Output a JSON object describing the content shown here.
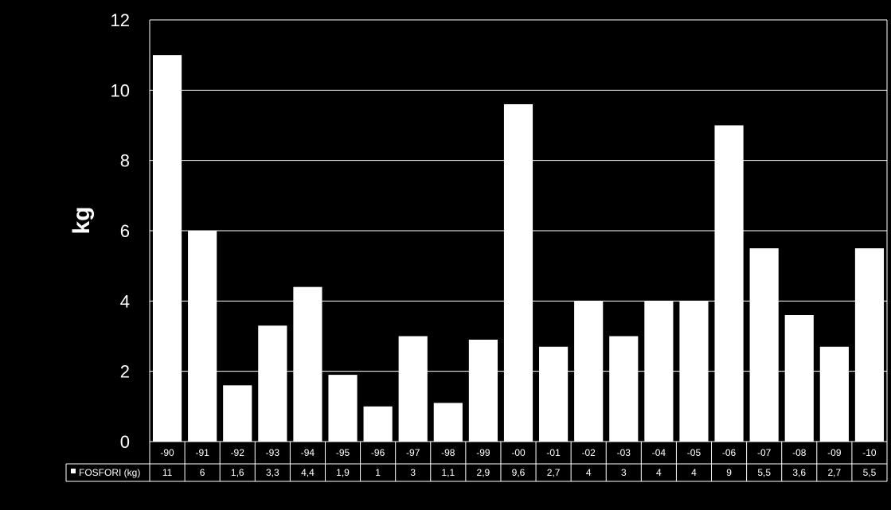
{
  "chart_data": {
    "type": "bar",
    "ylabel": "kg",
    "ylim": [
      0,
      12
    ],
    "yticks": [
      "0",
      "2",
      "4",
      "6",
      "8",
      "10",
      "12"
    ],
    "grid": true,
    "categories": [
      "-90",
      "-91",
      "-92",
      "-93",
      "-94",
      "-95",
      "-96",
      "-97",
      "-98",
      "-99",
      "-00",
      "-01",
      "-02",
      "-03",
      "-04",
      "-05",
      "-06",
      "-07",
      "-08",
      "-09",
      "-10"
    ],
    "series": [
      {
        "name": "FOSFORI (kg)",
        "color": "#ffffff",
        "values": [
          11,
          6,
          1.6,
          3.3,
          4.4,
          1.9,
          1,
          3,
          1.1,
          2.9,
          9.6,
          2.7,
          4,
          3,
          4,
          4,
          9,
          5.5,
          3.6,
          2.7,
          5.5
        ],
        "value_labels": [
          "11",
          "6",
          "1,6",
          "3,3",
          "4,4",
          "1,9",
          "1",
          "3",
          "1,1",
          "2,9",
          "9,6",
          "2,7",
          "4",
          "3",
          "4",
          "4",
          "9",
          "5,5",
          "3,6",
          "2,7",
          "5,5"
        ]
      }
    ]
  }
}
